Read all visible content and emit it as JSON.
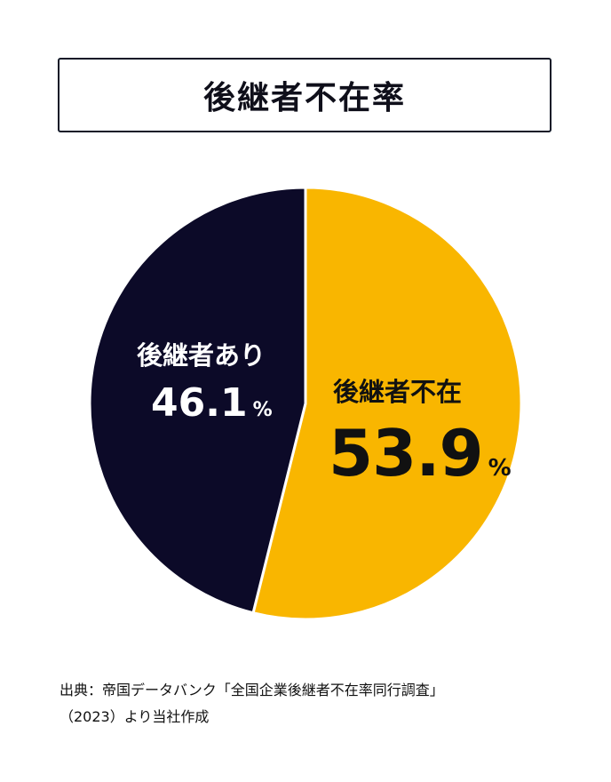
{
  "title": "後継者不在率",
  "source": {
    "line1": "出典：帝国データバンク「全国企業後継者不在率同行調査」",
    "line2": "（2023）より当社作成"
  },
  "chart_data": {
    "type": "pie",
    "title": "後継者不在率",
    "slices": [
      {
        "label": "後継者不在",
        "value": 53.9,
        "value_text": "53.9",
        "unit": "%",
        "color": "#F9B600"
      },
      {
        "label": "後継者あり",
        "value": 46.1,
        "value_text": "46.1",
        "unit": "%",
        "color": "#0C0A28"
      }
    ],
    "start_angle_deg": 0,
    "direction": "clockwise",
    "slice_separator_color": "#ffffff",
    "legend": "none"
  }
}
